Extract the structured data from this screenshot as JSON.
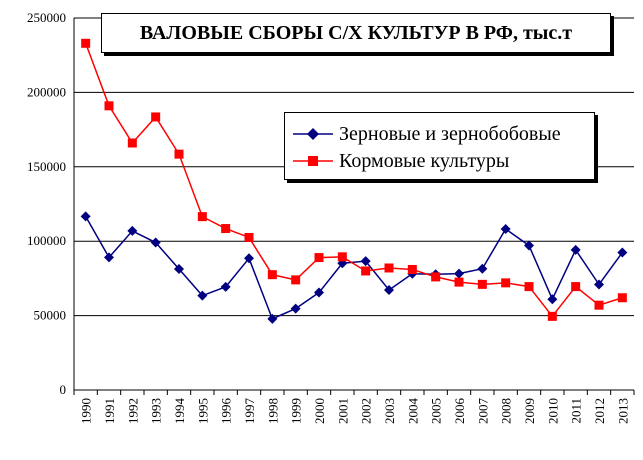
{
  "chart_data": {
    "type": "line",
    "title": "ВАЛОВЫЕ СБОРЫ С/Х КУЛЬТУР В РФ, тыс.т",
    "categories": [
      "1990",
      "1991",
      "1992",
      "1993",
      "1994",
      "1995",
      "1996",
      "1997",
      "1998",
      "1999",
      "2000",
      "2001",
      "2002",
      "2003",
      "2004",
      "2005",
      "2006",
      "2007",
      "2008",
      "2009",
      "2010",
      "2011",
      "2012",
      "2013"
    ],
    "ylim": [
      0,
      250000
    ],
    "yticks": [
      "0",
      "50000",
      "100000",
      "150000",
      "200000",
      "250000"
    ],
    "grid": true,
    "legend_position": "top-right",
    "series": [
      {
        "name": "Зерновые и зернобобовые",
        "color": "#000080",
        "marker": "diamond",
        "values": [
          116700,
          89100,
          106900,
          99100,
          81300,
          63400,
          69300,
          88500,
          47800,
          54700,
          65500,
          85200,
          86600,
          67200,
          78100,
          77800,
          78200,
          81500,
          108200,
          97100,
          61000,
          94200,
          70900,
          92400
        ]
      },
      {
        "name": "Кормовые культуры",
        "color": "#ff0000",
        "marker": "square",
        "values": [
          233000,
          191000,
          166000,
          183500,
          158500,
          116500,
          108500,
          102500,
          77500,
          74000,
          89000,
          89500,
          80000,
          82000,
          81000,
          76000,
          72500,
          71000,
          72000,
          69500,
          49500,
          69500,
          57000,
          62000
        ]
      }
    ]
  }
}
